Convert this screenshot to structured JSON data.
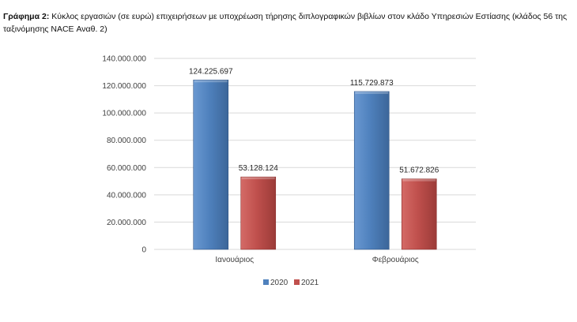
{
  "caption": {
    "label": "Γράφημα 2:",
    "text": " Κύκλος εργασιών (σε ευρώ) επιχειρήσεων με υποχρέωση τήρησης διπλογραφικών βιβλίων στον κλάδο Υπηρεσιών Εστίασης (κλάδος 56 της ταξινόμησης NACE Αναθ. 2)"
  },
  "chart_data": {
    "type": "bar",
    "title": "",
    "xlabel": "",
    "ylabel": "",
    "categories": [
      "Ιανουάριος",
      "Φεβρουάριος"
    ],
    "series": [
      {
        "name": "2020",
        "color": "#4F81BD",
        "values": [
          124225697,
          115729873
        ],
        "labels": [
          "124.225.697",
          "115.729.873"
        ]
      },
      {
        "name": "2021",
        "color": "#C0504D",
        "values": [
          53128124,
          51672826
        ],
        "labels": [
          "53.128.124",
          "51.672.826"
        ]
      }
    ],
    "ylim": [
      0,
      140000000
    ],
    "yticks": [
      0,
      20000000,
      40000000,
      60000000,
      80000000,
      100000000,
      120000000,
      140000000
    ],
    "ytick_labels": [
      "0",
      "20.000.000",
      "40.000.000",
      "60.000.000",
      "80.000.000",
      "100.000.000",
      "120.000.000",
      "140.000.000"
    ],
    "grid": true,
    "legend_position": "bottom-center"
  }
}
